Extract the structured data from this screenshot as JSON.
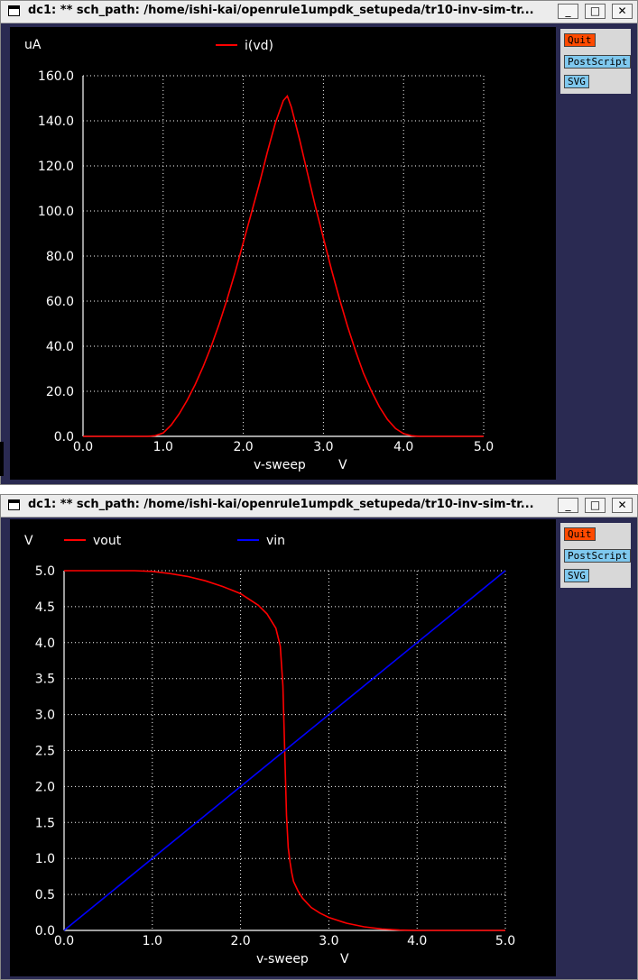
{
  "windows": [
    {
      "title": "dc1: ** sch_path: /home/ishi-kai/openrule1umpdk_setupeda/tr10-inv-sim-tr...",
      "controls": {
        "minimize": "_",
        "maximize": "□",
        "close": "✕"
      },
      "buttons": [
        "Quit",
        "PostScript",
        "SVG"
      ],
      "chart_data": {
        "type": "line",
        "ylabel": "uA",
        "xlabel": "v-sweep",
        "xunit": "V",
        "xlim": [
          0,
          5
        ],
        "ylim": [
          0,
          160
        ],
        "xticks": [
          "0.0",
          "1.0",
          "2.0",
          "3.0",
          "4.0",
          "5.0"
        ],
        "yticks": [
          "0.0",
          "20.0",
          "40.0",
          "60.0",
          "80.0",
          "100.0",
          "120.0",
          "140.0",
          "160.0"
        ],
        "grid": true,
        "series": [
          {
            "name": "i(vd)",
            "color": "#ff0000",
            "x": [
              0.0,
              0.5,
              0.8,
              0.9,
              1.0,
              1.1,
              1.2,
              1.3,
              1.4,
              1.5,
              1.6,
              1.7,
              1.8,
              1.9,
              2.0,
              2.1,
              2.2,
              2.3,
              2.4,
              2.5,
              2.55,
              2.6,
              2.7,
              2.8,
              2.9,
              3.0,
              3.1,
              3.2,
              3.3,
              3.4,
              3.5,
              3.6,
              3.7,
              3.8,
              3.9,
              4.0,
              4.1,
              4.2,
              4.3,
              5.0
            ],
            "y": [
              0,
              0,
              0,
              0.3,
              1.5,
              5,
              10,
              16,
              23,
              31,
              40,
              50,
              61,
              73,
              86,
              99,
              112,
              126,
              139,
              149,
              151,
              146,
              132,
              117,
              102,
              88,
              74,
              61,
              49,
              38,
              28,
              20,
              13,
              7.5,
              3.5,
              1.2,
              0.3,
              0,
              0,
              0
            ]
          }
        ]
      }
    },
    {
      "title": "dc1: ** sch_path: /home/ishi-kai/openrule1umpdk_setupeda/tr10-inv-sim-tr...",
      "controls": {
        "minimize": "_",
        "maximize": "□",
        "close": "✕"
      },
      "buttons": [
        "Quit",
        "PostScript",
        "SVG"
      ],
      "chart_data": {
        "type": "line",
        "ylabel": "V",
        "xlabel": "v-sweep",
        "xunit": "V",
        "xlim": [
          0,
          5
        ],
        "ylim": [
          0,
          5
        ],
        "xticks": [
          "0.0",
          "1.0",
          "2.0",
          "3.0",
          "4.0",
          "5.0"
        ],
        "yticks": [
          "0.0",
          "0.5",
          "1.0",
          "1.5",
          "2.0",
          "2.5",
          "3.0",
          "3.5",
          "4.0",
          "4.5",
          "5.0"
        ],
        "grid": true,
        "series": [
          {
            "name": "vout",
            "color": "#ff0000",
            "x": [
              0.0,
              0.8,
              1.0,
              1.2,
              1.4,
              1.6,
              1.8,
              2.0,
              2.2,
              2.3,
              2.4,
              2.45,
              2.48,
              2.5,
              2.52,
              2.54,
              2.56,
              2.58,
              2.6,
              2.65,
              2.7,
              2.8,
              2.9,
              3.0,
              3.2,
              3.4,
              3.6,
              3.8,
              4.0,
              5.0
            ],
            "y": [
              5.0,
              5.0,
              4.99,
              4.96,
              4.92,
              4.86,
              4.78,
              4.68,
              4.52,
              4.4,
              4.2,
              3.95,
              3.4,
              2.5,
              1.6,
              1.15,
              0.95,
              0.8,
              0.68,
              0.55,
              0.45,
              0.32,
              0.24,
              0.18,
              0.1,
              0.05,
              0.02,
              0.005,
              0.0,
              0.0
            ]
          },
          {
            "name": "vin",
            "color": "#0000ff",
            "x": [
              0.0,
              5.0
            ],
            "y": [
              0.0,
              5.0
            ]
          }
        ]
      }
    }
  ]
}
